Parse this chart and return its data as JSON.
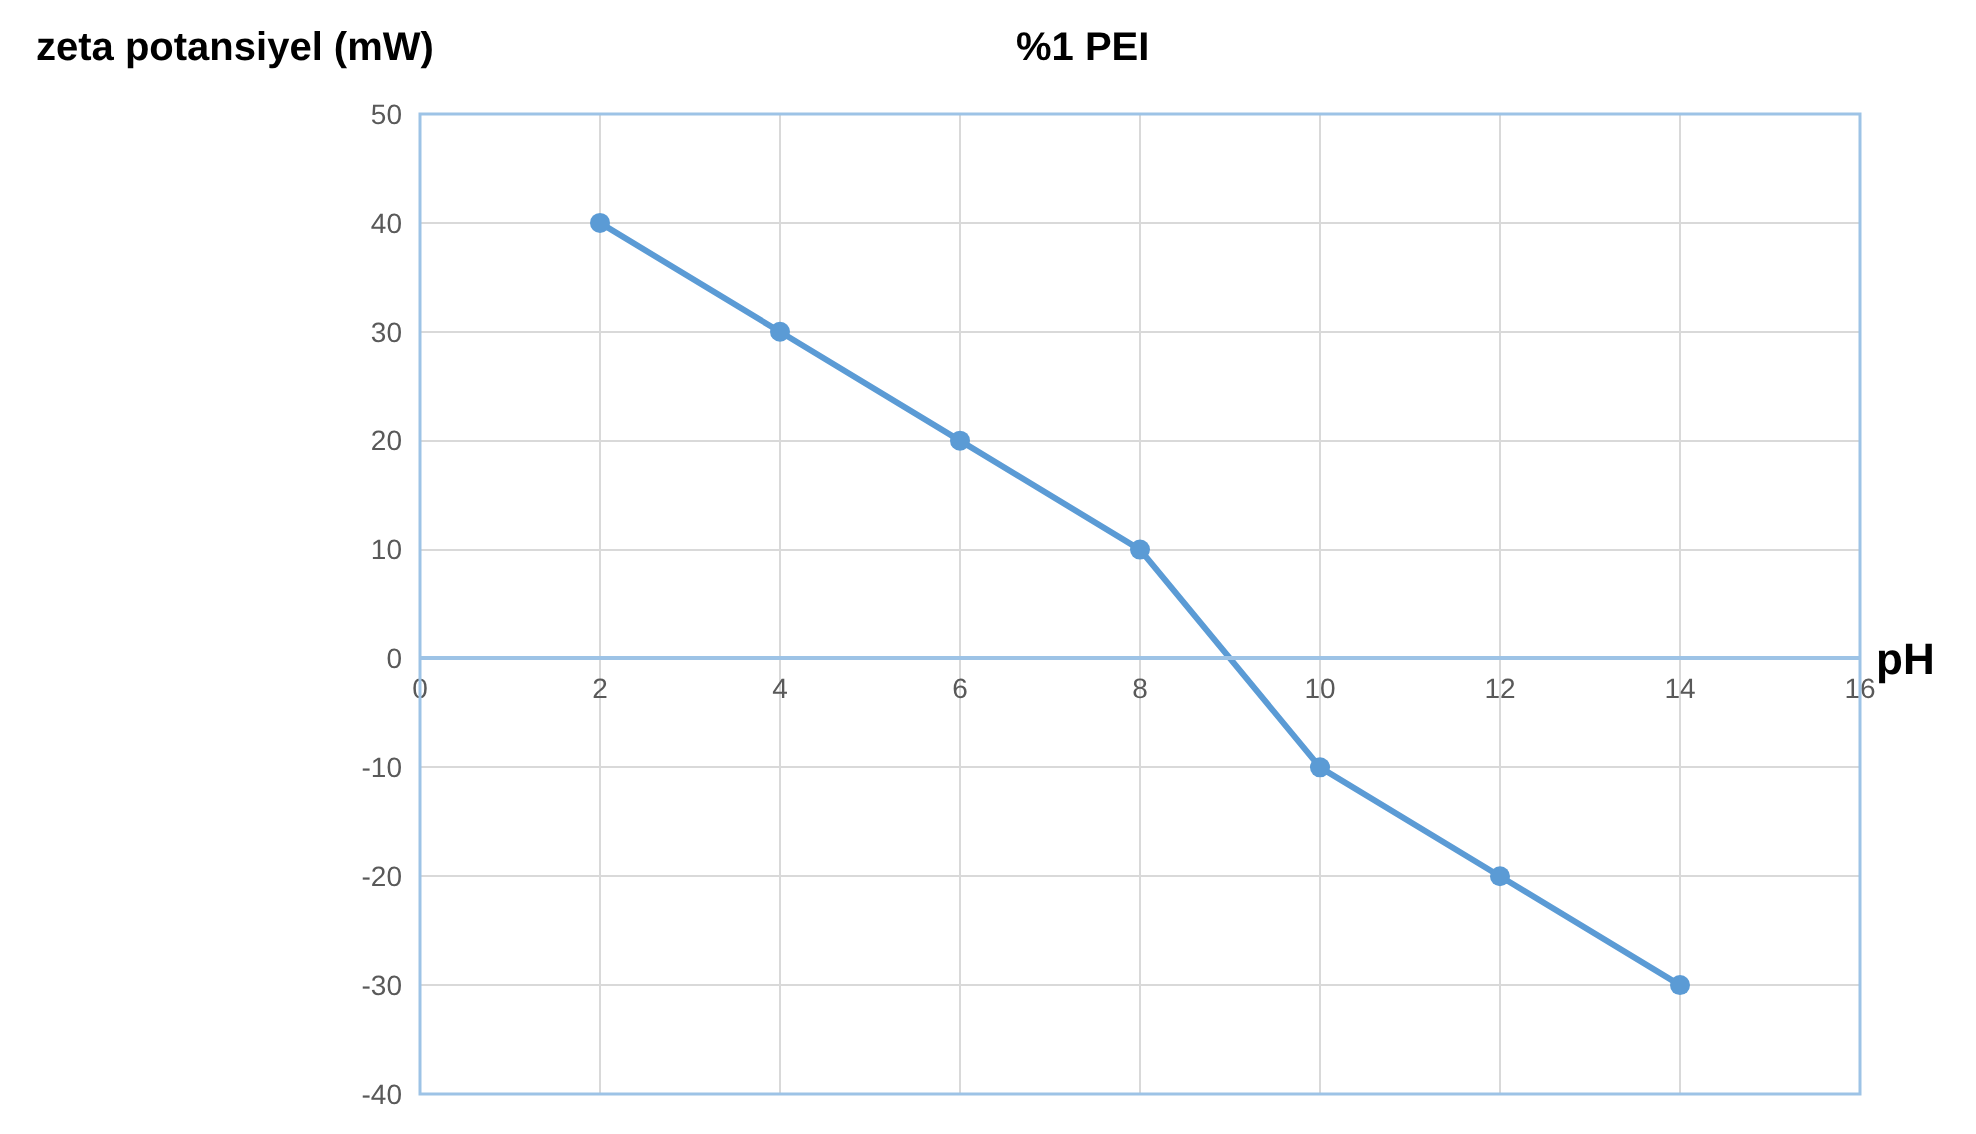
{
  "chart_data": {
    "type": "line",
    "title": "%1 PEI",
    "xlabel": "pH",
    "ylabel": "zeta potansiyel (mW)",
    "x": [
      2,
      4,
      6,
      8,
      10,
      12,
      14
    ],
    "series": [
      {
        "color": "#5b9bd5",
        "values": [
          40,
          30,
          20,
          10,
          -10,
          -20,
          -30
        ]
      }
    ],
    "xlim": [
      0,
      16
    ],
    "xticks": [
      0,
      2,
      4,
      6,
      8,
      10,
      12,
      14,
      16
    ],
    "ylim": [
      -40,
      50
    ],
    "yticks": [
      -40,
      -30,
      -20,
      -10,
      0,
      10,
      20,
      30,
      40,
      50
    ],
    "grid": true,
    "marker": "circle",
    "line_style": "solid"
  }
}
